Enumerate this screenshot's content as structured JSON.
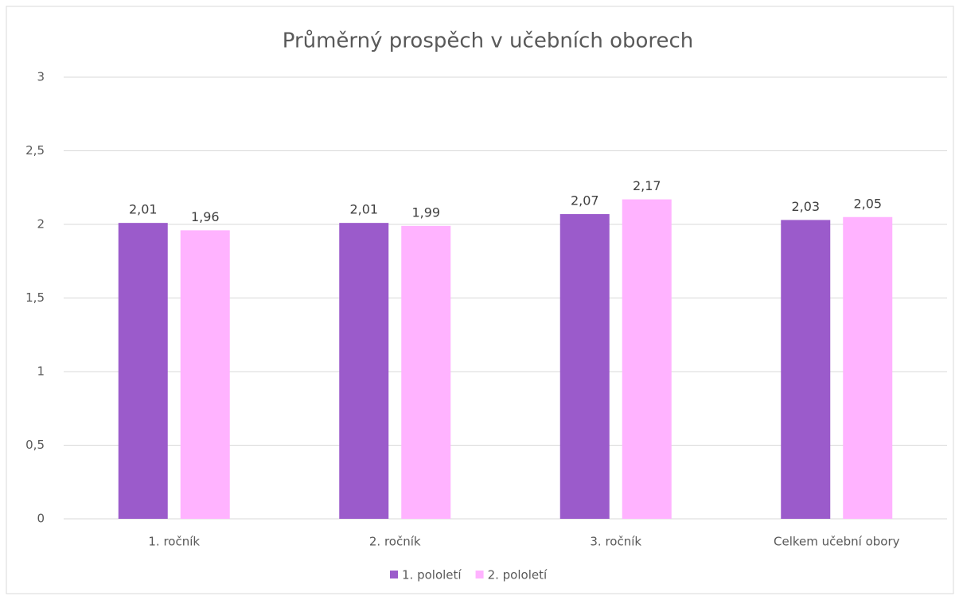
{
  "chart_data": {
    "type": "bar",
    "title": "Průměrný prospěch v učebních oborech",
    "categories": [
      "1. ročník",
      "2. ročník",
      "3. ročník",
      "Celkem učební obory"
    ],
    "series": [
      {
        "name": "1. pololetí",
        "color": "#9b5bcb",
        "values": [
          2.01,
          2.01,
          2.07,
          2.03
        ],
        "value_labels": [
          "2,01",
          "2,01",
          "2,07",
          "2,03"
        ]
      },
      {
        "name": "2. pololetí",
        "color": "#ffb3ff",
        "values": [
          1.96,
          1.99,
          2.17,
          2.05
        ],
        "value_labels": [
          "1,96",
          "1,99",
          "2,17",
          "2,05"
        ]
      }
    ],
    "ylim": [
      0,
      3
    ],
    "yticks": [
      0,
      {
        "value": 0.5,
        "label": "0,5"
      },
      1,
      {
        "value": 1.5,
        "label": "1,5"
      },
      2,
      {
        "value": 2.5,
        "label": "2,5"
      },
      3
    ],
    "grid": true,
    "legend": "bottom"
  }
}
